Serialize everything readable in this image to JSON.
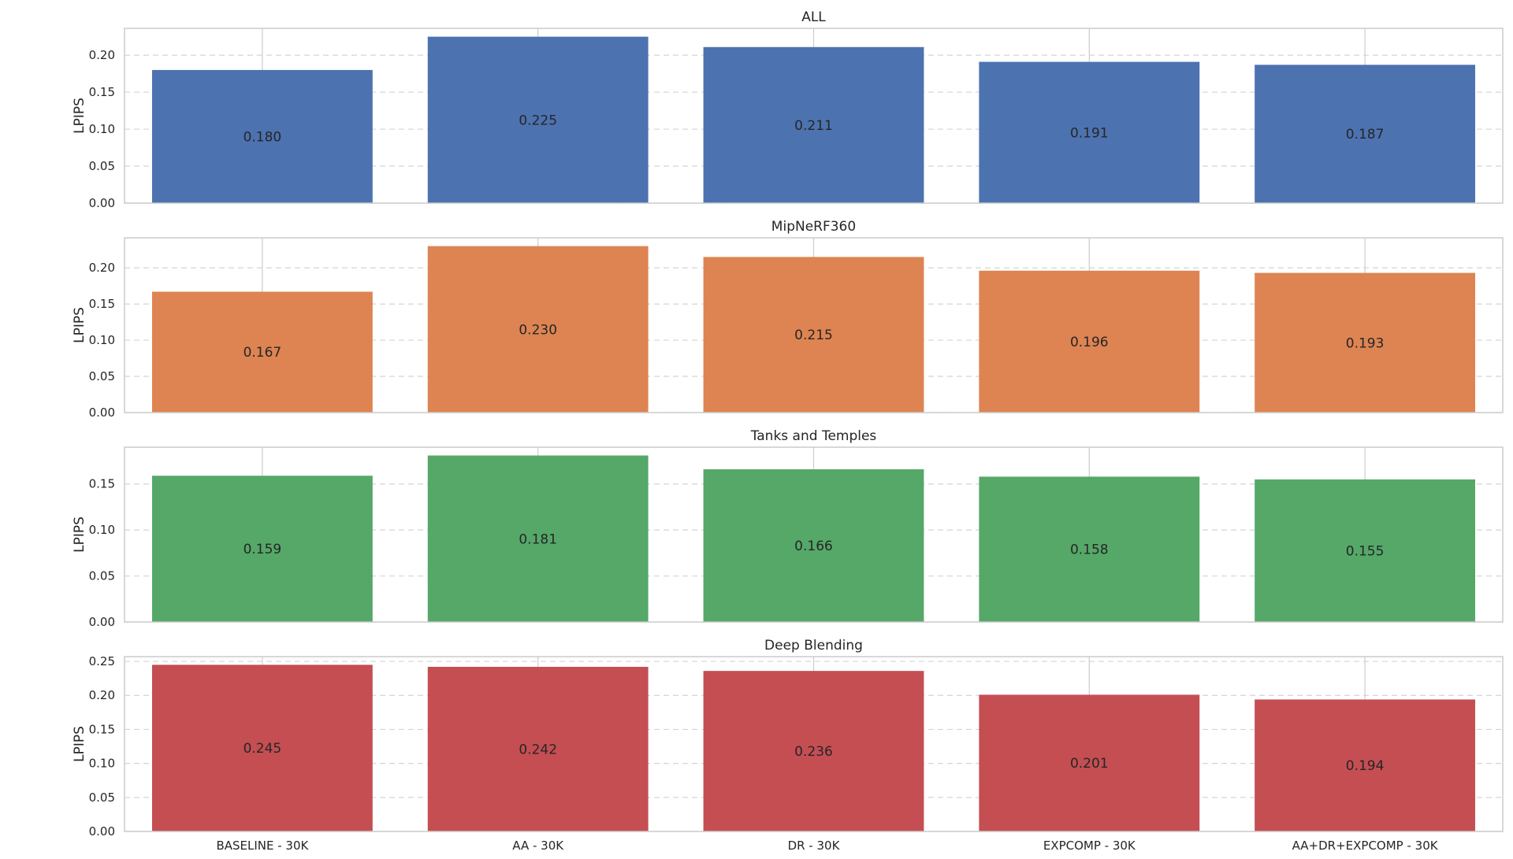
{
  "chart_data": {
    "type": "bar",
    "categories": [
      "BASELINE - 30K",
      "AA - 30K",
      "DR - 30K",
      "EXPCOMP - 30K",
      "AA+DR+EXPCOMP - 30K"
    ],
    "panels": [
      {
        "title": "ALL",
        "ylabel": "LPIPS",
        "color": "#4c72b0",
        "values": [
          0.18,
          0.225,
          0.211,
          0.191,
          0.187
        ],
        "value_labels": [
          "0.180",
          "0.225",
          "0.211",
          "0.191",
          "0.187"
        ],
        "ylim": [
          0,
          0.2363
        ],
        "yticks": [
          0.0,
          0.05,
          0.1,
          0.15,
          0.2
        ],
        "ytick_labels": [
          "0.00",
          "0.05",
          "0.10",
          "0.15",
          "0.20"
        ]
      },
      {
        "title": "MipNeRF360",
        "ylabel": "LPIPS",
        "color": "#dd8452",
        "values": [
          0.167,
          0.23,
          0.215,
          0.196,
          0.193
        ],
        "value_labels": [
          "0.167",
          "0.230",
          "0.215",
          "0.196",
          "0.193"
        ],
        "ylim": [
          0,
          0.2415
        ],
        "yticks": [
          0.0,
          0.05,
          0.1,
          0.15,
          0.2
        ],
        "ytick_labels": [
          "0.00",
          "0.05",
          "0.10",
          "0.15",
          "0.20"
        ]
      },
      {
        "title": "Tanks and Temples",
        "ylabel": "LPIPS",
        "color": "#55a868",
        "values": [
          0.159,
          0.181,
          0.166,
          0.158,
          0.155
        ],
        "value_labels": [
          "0.159",
          "0.181",
          "0.166",
          "0.158",
          "0.155"
        ],
        "ylim": [
          0,
          0.19
        ],
        "yticks": [
          0.0,
          0.05,
          0.1,
          0.15
        ],
        "ytick_labels": [
          "0.00",
          "0.05",
          "0.10",
          "0.15"
        ]
      },
      {
        "title": "Deep Blending",
        "ylabel": "LPIPS",
        "color": "#c44e52",
        "values": [
          0.245,
          0.242,
          0.236,
          0.201,
          0.194
        ],
        "value_labels": [
          "0.245",
          "0.242",
          "0.236",
          "0.201",
          "0.194"
        ],
        "ylim": [
          0,
          0.257
        ],
        "yticks": [
          0.0,
          0.05,
          0.1,
          0.15,
          0.2,
          0.25
        ],
        "ytick_labels": [
          "0.00",
          "0.05",
          "0.10",
          "0.15",
          "0.20",
          "0.25"
        ]
      }
    ],
    "grid": true,
    "legend": "none"
  }
}
